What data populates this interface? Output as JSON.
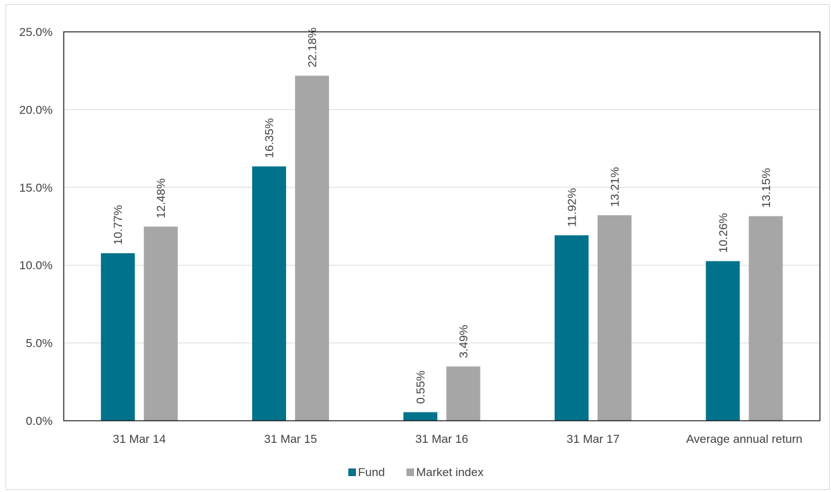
{
  "chart_data": {
    "type": "bar",
    "categories": [
      "31 Mar 14",
      "31 Mar 15",
      "31 Mar 16",
      "31 Mar 17",
      "Average annual return"
    ],
    "series": [
      {
        "name": "Fund",
        "values": [
          10.77,
          16.35,
          0.55,
          11.92,
          10.26
        ],
        "color": "#00728c"
      },
      {
        "name": "Market index",
        "values": [
          12.48,
          22.18,
          3.49,
          13.21,
          13.15
        ],
        "color": "#a6a6a6"
      }
    ],
    "data_labels": [
      [
        "10.77%",
        "16.35%",
        "0.55%",
        "11.92%",
        "10.26%"
      ],
      [
        "12.48%",
        "22.18%",
        "3.49%",
        "13.21%",
        "13.15%"
      ]
    ],
    "y_ticks": [
      0,
      5,
      10,
      15,
      20,
      25
    ],
    "y_tick_labels": [
      "0.0%",
      "5.0%",
      "10.0%",
      "15.0%",
      "20.0%",
      "25.0%"
    ],
    "ylim": [
      0,
      25
    ],
    "grid": true,
    "legend_position": "bottom-center",
    "data_label_orientation": "vertical"
  }
}
